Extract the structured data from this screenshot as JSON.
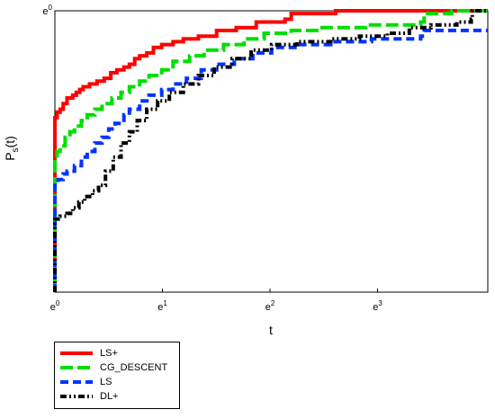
{
  "chart_data": {
    "type": "line",
    "title": "",
    "xlabel": "t",
    "ylabel_main": "P",
    "ylabel_sub": "s",
    "ylabel_suffix": "(t)",
    "x_scale": "log",
    "xlim": [
      1,
      56
    ],
    "ylim": [
      0,
      1
    ],
    "x_ticks": [
      {
        "base": "e",
        "exp": "0",
        "value": 1
      },
      {
        "base": "e",
        "exp": "1",
        "value": 2.718
      },
      {
        "base": "e",
        "exp": "2",
        "value": 7.389
      },
      {
        "base": "e",
        "exp": "3",
        "value": 20.086
      }
    ],
    "y_ticks": [
      {
        "base": "e",
        "exp": "0",
        "value": 1
      }
    ],
    "legend_position": "below-left",
    "series": [
      {
        "name": "LS+",
        "color": "#ff0000",
        "dash": "solid",
        "points": [
          [
            1,
            0
          ],
          [
            1,
            0.4
          ],
          [
            1,
            0.56
          ],
          [
            1,
            0.62
          ],
          [
            1.02,
            0.64
          ],
          [
            1.05,
            0.65
          ],
          [
            1.08,
            0.67
          ],
          [
            1.12,
            0.69
          ],
          [
            1.18,
            0.7
          ],
          [
            1.22,
            0.71
          ],
          [
            1.26,
            0.72
          ],
          [
            1.3,
            0.73
          ],
          [
            1.38,
            0.74
          ],
          [
            1.48,
            0.75
          ],
          [
            1.58,
            0.76
          ],
          [
            1.68,
            0.78
          ],
          [
            1.78,
            0.79
          ],
          [
            1.9,
            0.8
          ],
          [
            2.0,
            0.81
          ],
          [
            2.1,
            0.83
          ],
          [
            2.2,
            0.84
          ],
          [
            2.35,
            0.85
          ],
          [
            2.5,
            0.87
          ],
          [
            2.7,
            0.88
          ],
          [
            3.0,
            0.89
          ],
          [
            3.3,
            0.9
          ],
          [
            3.8,
            0.91
          ],
          [
            4.5,
            0.93
          ],
          [
            5.4,
            0.94
          ],
          [
            6.5,
            0.96
          ],
          [
            8.5,
            0.97
          ],
          [
            9.0,
            0.99
          ],
          [
            13.5,
            0.99
          ],
          [
            13.6,
            1.0
          ],
          [
            56,
            1.0
          ]
        ]
      },
      {
        "name": "CG_DESCENT",
        "color": "#00dd00",
        "dash": "long",
        "points": [
          [
            1,
            0
          ],
          [
            1,
            0.35
          ],
          [
            1,
            0.47
          ],
          [
            1.02,
            0.5
          ],
          [
            1.05,
            0.52
          ],
          [
            1.1,
            0.55
          ],
          [
            1.15,
            0.57
          ],
          [
            1.2,
            0.59
          ],
          [
            1.28,
            0.61
          ],
          [
            1.35,
            0.63
          ],
          [
            1.45,
            0.65
          ],
          [
            1.55,
            0.67
          ],
          [
            1.7,
            0.69
          ],
          [
            1.85,
            0.71
          ],
          [
            2.0,
            0.73
          ],
          [
            2.2,
            0.75
          ],
          [
            2.4,
            0.77
          ],
          [
            2.7,
            0.79
          ],
          [
            3.0,
            0.82
          ],
          [
            3.5,
            0.84
          ],
          [
            4.0,
            0.86
          ],
          [
            4.8,
            0.88
          ],
          [
            5.8,
            0.9
          ],
          [
            7.0,
            0.92
          ],
          [
            9.0,
            0.93
          ],
          [
            12,
            0.94
          ],
          [
            18,
            0.95
          ],
          [
            30,
            0.96
          ],
          [
            31,
            0.99
          ],
          [
            40,
            1.0
          ],
          [
            56,
            1.0
          ]
        ]
      },
      {
        "name": "LS",
        "color": "#0033ff",
        "dash": "medium",
        "points": [
          [
            1,
            0
          ],
          [
            1,
            0.3
          ],
          [
            1,
            0.38
          ],
          [
            1.03,
            0.4
          ],
          [
            1.08,
            0.42
          ],
          [
            1.12,
            0.43
          ],
          [
            1.2,
            0.45
          ],
          [
            1.28,
            0.48
          ],
          [
            1.35,
            0.5
          ],
          [
            1.45,
            0.53
          ],
          [
            1.55,
            0.55
          ],
          [
            1.65,
            0.58
          ],
          [
            1.75,
            0.6
          ],
          [
            1.9,
            0.63
          ],
          [
            2.0,
            0.65
          ],
          [
            2.2,
            0.68
          ],
          [
            2.4,
            0.7
          ],
          [
            2.7,
            0.72
          ],
          [
            3.0,
            0.74
          ],
          [
            3.4,
            0.76
          ],
          [
            3.9,
            0.79
          ],
          [
            4.5,
            0.81
          ],
          [
            5.3,
            0.83
          ],
          [
            6.3,
            0.85
          ],
          [
            7.5,
            0.87
          ],
          [
            9.5,
            0.88
          ],
          [
            13,
            0.89
          ],
          [
            19,
            0.9
          ],
          [
            30,
            0.91
          ],
          [
            31,
            0.93
          ],
          [
            56,
            0.93
          ]
        ]
      },
      {
        "name": "DL+",
        "color": "#000000",
        "dash": "dashdot",
        "points": [
          [
            1,
            0
          ],
          [
            1,
            0.2
          ],
          [
            1,
            0.26
          ],
          [
            1.05,
            0.27
          ],
          [
            1.12,
            0.28
          ],
          [
            1.18,
            0.3
          ],
          [
            1.25,
            0.32
          ],
          [
            1.32,
            0.34
          ],
          [
            1.42,
            0.36
          ],
          [
            1.5,
            0.38
          ],
          [
            1.6,
            0.43
          ],
          [
            1.72,
            0.48
          ],
          [
            1.85,
            0.53
          ],
          [
            2.0,
            0.57
          ],
          [
            2.15,
            0.61
          ],
          [
            2.35,
            0.65
          ],
          [
            2.6,
            0.68
          ],
          [
            2.9,
            0.71
          ],
          [
            3.3,
            0.74
          ],
          [
            3.8,
            0.77
          ],
          [
            4.4,
            0.8
          ],
          [
            5.2,
            0.83
          ],
          [
            6.2,
            0.86
          ],
          [
            7.5,
            0.88
          ],
          [
            9.5,
            0.89
          ],
          [
            13,
            0.9
          ],
          [
            17,
            0.91
          ],
          [
            22,
            0.92
          ],
          [
            27,
            0.94
          ],
          [
            33,
            0.95
          ],
          [
            42,
            0.96
          ],
          [
            48,
            0.97
          ],
          [
            48.5,
            1.0
          ],
          [
            56,
            1.0
          ]
        ]
      }
    ]
  }
}
